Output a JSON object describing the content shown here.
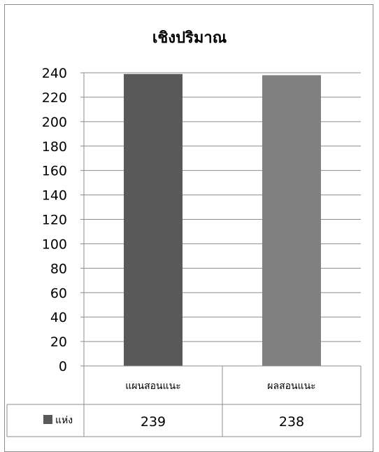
{
  "chart_data": {
    "type": "bar",
    "title": "เชิงปริมาณ",
    "categories": [
      "แผนสอนแนะ",
      "ผลสอนแนะ"
    ],
    "series": [
      {
        "name": "แห่ง",
        "values": [
          239,
          238
        ],
        "color": "#595959"
      }
    ],
    "bar_colors": [
      "#595959",
      "#808080"
    ],
    "ylim": [
      0,
      240
    ],
    "yticks": [
      0,
      20,
      40,
      60,
      80,
      100,
      120,
      140,
      160,
      180,
      200,
      220,
      240
    ],
    "grid": true,
    "legend": "data-table"
  }
}
